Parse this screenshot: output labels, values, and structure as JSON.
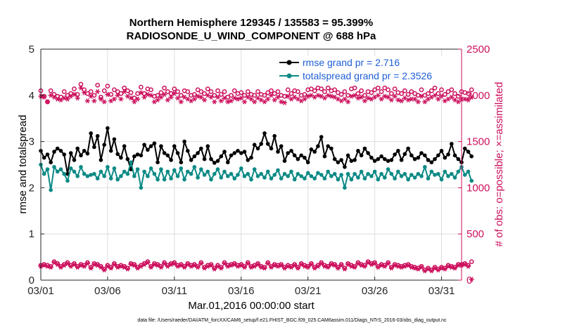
{
  "chart_data": {
    "type": "line",
    "title_lines": [
      "Northern Hemisphere 129345 / 135583 = 95.399%",
      "RADIOSONDE_U_WIND_COMPONENT @ 688 hPa"
    ],
    "xlabel": "Mar.01,2016 00:00:00 start",
    "ylabel_left": "rmse and totalspread",
    "ylabel_right": "# of obs: o=possible; ×=assimilated",
    "footnote": "data file: /Users/raeder/DAI/ATM_forcXX/CAM6_setup/f.e21.FHIST_BGC.f09_025.CAM6assim.011/Diags_NTrS_2016-03/obs_diag_output.nc",
    "xlim": [
      0,
      31.5
    ],
    "ylim_left": [
      0,
      5
    ],
    "ylim_right": [
      0,
      2500
    ],
    "x_ticks": [
      0,
      5,
      10,
      15,
      20,
      25,
      30
    ],
    "x_tick_labels": [
      "03/01",
      "03/06",
      "03/11",
      "03/16",
      "03/21",
      "03/26",
      "03/31"
    ],
    "y_left_ticks": [
      0,
      1,
      2,
      3,
      4,
      5
    ],
    "y_left_tick_labels": [
      "0",
      "1",
      "2",
      "3",
      "4",
      "5"
    ],
    "y_right_ticks": [
      0,
      500,
      1000,
      1500,
      2000,
      2500
    ],
    "y_right_tick_labels": [
      "0",
      "500",
      "1000",
      "1500",
      "2000",
      "2500"
    ],
    "x_step_days": 0.25,
    "colors": {
      "rmse": "#000000",
      "spread": "#0b8a85",
      "obs": "#cc0f5c",
      "legend_text": "#1f5fd6"
    },
    "series": [
      {
        "name": "rmse grand pr = 2.716",
        "axis": "left",
        "values": [
          2.8,
          2.65,
          2.72,
          2.55,
          2.78,
          2.85,
          2.8,
          2.72,
          2.3,
          2.75,
          2.6,
          2.85,
          2.7,
          2.8,
          2.74,
          3.18,
          2.88,
          3.12,
          2.6,
          2.93,
          3.29,
          2.8,
          3.05,
          2.73,
          2.65,
          2.9,
          2.62,
          2.4,
          2.68,
          2.72,
          2.7,
          2.93,
          2.82,
          2.9,
          2.96,
          2.55,
          2.9,
          2.75,
          2.7,
          2.6,
          2.9,
          2.75,
          2.55,
          3.0,
          2.8,
          2.6,
          2.68,
          2.75,
          2.85,
          2.62,
          2.9,
          2.62,
          2.54,
          2.58,
          2.68,
          2.78,
          2.55,
          2.7,
          2.75,
          2.8,
          2.75,
          2.78,
          2.6,
          2.65,
          2.93,
          2.85,
          2.95,
          3.18,
          2.95,
          2.85,
          3.12,
          2.78,
          2.9,
          2.58,
          2.75,
          2.8,
          2.7,
          2.62,
          2.7,
          2.65,
          2.55,
          2.83,
          2.78,
          2.9,
          3.1,
          2.68,
          2.9,
          2.85,
          2.62,
          2.55,
          2.6,
          2.45,
          2.7,
          2.58,
          2.6,
          2.8,
          2.7,
          2.85,
          2.75,
          2.65,
          2.58,
          2.62,
          2.68,
          2.62,
          2.58,
          2.6,
          2.72,
          2.8,
          2.6,
          2.73,
          2.85,
          2.7,
          2.62,
          2.65,
          2.75,
          2.7,
          2.6,
          2.55,
          2.62,
          2.7,
          2.8,
          2.65,
          2.72,
          2.95,
          2.7,
          2.62,
          2.55,
          2.85,
          2.78,
          2.68
        ],
        "style": "line-markers"
      },
      {
        "name": "totalspread grand pr = 2.3526",
        "axis": "left",
        "values": [
          2.5,
          2.3,
          2.4,
          1.95,
          2.45,
          2.35,
          2.4,
          2.3,
          2.15,
          2.42,
          2.35,
          2.25,
          2.45,
          2.3,
          2.25,
          2.28,
          2.3,
          2.2,
          2.35,
          2.25,
          2.45,
          2.2,
          2.42,
          2.18,
          2.25,
          2.35,
          2.3,
          2.55,
          2.25,
          2.4,
          2.0,
          2.35,
          2.25,
          2.42,
          2.3,
          2.18,
          2.4,
          2.18,
          2.35,
          2.2,
          2.38,
          2.25,
          2.42,
          2.18,
          2.35,
          2.3,
          2.45,
          2.22,
          2.4,
          2.28,
          2.35,
          2.18,
          2.3,
          2.4,
          2.22,
          2.35,
          2.25,
          2.3,
          2.2,
          2.28,
          2.42,
          2.25,
          2.3,
          2.18,
          2.4,
          2.25,
          2.3,
          2.22,
          2.35,
          2.2,
          2.28,
          2.38,
          2.2,
          2.3,
          2.25,
          2.35,
          2.18,
          2.3,
          2.25,
          2.2,
          2.32,
          2.25,
          2.2,
          2.32,
          2.28,
          2.2,
          2.35,
          2.25,
          2.3,
          2.18,
          2.28,
          2.0,
          2.3,
          2.18,
          2.3,
          2.22,
          2.35,
          2.2,
          2.3,
          2.25,
          2.35,
          2.18,
          2.3,
          2.22,
          2.4,
          2.3,
          2.2,
          2.35,
          2.25,
          2.3,
          2.18,
          2.28,
          2.22,
          2.3,
          2.25,
          2.45,
          2.2,
          2.35,
          2.28,
          2.3,
          2.18,
          2.35,
          2.25,
          2.3,
          2.22,
          2.35,
          2.45,
          2.28,
          2.35,
          2.15
        ],
        "style": "line-markers"
      },
      {
        "name": "possible (upper)",
        "axis": "right",
        "values": [
          2050,
          1990,
          1930,
          2050,
          2010,
          1990,
          1980,
          2040,
          2000,
          2020,
          2070,
          2010,
          2120,
          2060,
          2020,
          2040,
          2000,
          2110,
          1980,
          2050,
          2100,
          2010,
          2060,
          2040,
          2020,
          2080,
          2050,
          2030,
          1970,
          2020,
          2090,
          2020,
          2070,
          2060,
          1990,
          2000,
          2030,
          2080,
          2040,
          2020,
          2070,
          2040,
          2000,
          2050,
          2040,
          2000,
          2010,
          2060,
          2040,
          2020,
          2070,
          2040,
          2000,
          2050,
          2010,
          2040,
          1980,
          2000,
          2050,
          2020,
          2030,
          2000,
          2040,
          2010,
          2000,
          2040,
          2010,
          2000,
          2030,
          2050,
          2020,
          2040,
          2000,
          1990,
          2060,
          2020,
          2050,
          2040,
          2000,
          2010,
          2060,
          2070,
          2050,
          2080,
          2070,
          2040,
          2080,
          2050,
          2060,
          2030,
          2010,
          2040,
          2000,
          2070,
          2080,
          2020,
          2050,
          2000,
          2040,
          2030,
          2060,
          2080,
          2040,
          2080,
          2060,
          2020,
          2070,
          2030,
          2020,
          2050,
          2010,
          2040,
          2020,
          2000,
          2060,
          2000,
          2020,
          2050,
          2080,
          2020,
          2060,
          2010,
          2040,
          2060,
          2020,
          1990,
          2040,
          2030,
          2020,
          2060
        ],
        "style": "markers-circle"
      },
      {
        "name": "assimilated (upper)",
        "axis": "right",
        "values": [
          1990,
          1980,
          1930,
          2000,
          1980,
          1960,
          1950,
          1970,
          1960,
          1990,
          2010,
          1970,
          2080,
          2030,
          1940,
          1990,
          1940,
          2040,
          1960,
          1930,
          2010,
          1940,
          1960,
          2000,
          1960,
          2040,
          1990,
          1970,
          1930,
          1960,
          2030,
          1980,
          2010,
          2000,
          1930,
          1950,
          1980,
          2010,
          1950,
          1980,
          2020,
          1970,
          1930,
          1980,
          1960,
          1940,
          1960,
          1990,
          1980,
          1950,
          2000,
          1980,
          1930,
          1980,
          1940,
          1970,
          1930,
          1940,
          1970,
          1960,
          1970,
          1930,
          1980,
          1960,
          1930,
          1970,
          1950,
          1930,
          1960,
          2000,
          1950,
          1980,
          1930,
          1920,
          1990,
          1960,
          1980,
          1960,
          1940,
          1960,
          1990,
          2000,
          1980,
          2000,
          1990,
          1970,
          2000,
          1990,
          1980,
          1960,
          1940,
          1960,
          1930,
          1990,
          2000,
          1970,
          1980,
          1940,
          1970,
          1960,
          1980,
          2000,
          1960,
          1990,
          1980,
          1950,
          1990,
          1950,
          1940,
          1970,
          1950,
          1960,
          1960,
          1930,
          1990,
          1930,
          1960,
          1980,
          2000,
          1960,
          1990,
          1940,
          1960,
          1980,
          1950,
          1930,
          1960,
          1960,
          1950,
          1980
        ],
        "style": "markers-star"
      },
      {
        "name": "possible (lower)",
        "axis": "right",
        "values": [
          160,
          170,
          160,
          150,
          200,
          180,
          150,
          170,
          190,
          160,
          180,
          150,
          170,
          160,
          190,
          140,
          180,
          170,
          150,
          120,
          160,
          140,
          180,
          150,
          160,
          150,
          130,
          180,
          170,
          140,
          160,
          180,
          200,
          150,
          180,
          170,
          150,
          190,
          160,
          180,
          190,
          160,
          170,
          150,
          180,
          160,
          170,
          150,
          190,
          140,
          160,
          170,
          130,
          160,
          140,
          190,
          160,
          170,
          180,
          160,
          170,
          150,
          190,
          150,
          160,
          180,
          150,
          140,
          190,
          150,
          170,
          160,
          170,
          140,
          160,
          150,
          170,
          140,
          180,
          160,
          150,
          180,
          140,
          160,
          190,
          160,
          150,
          180,
          170,
          140,
          170,
          130,
          180,
          160,
          150,
          190,
          170,
          160,
          200,
          180,
          190,
          150,
          170,
          160,
          190,
          140,
          170,
          160,
          150,
          160,
          170,
          150,
          140,
          130,
          150,
          110,
          130,
          110,
          140,
          120,
          140,
          130,
          160,
          150,
          140,
          170,
          170,
          180,
          160,
          200
        ],
        "style": "markers-circle"
      },
      {
        "name": "assimilated (lower)",
        "axis": "right",
        "values": [
          150,
          160,
          150,
          140,
          190,
          170,
          140,
          160,
          180,
          150,
          170,
          140,
          160,
          150,
          180,
          130,
          170,
          160,
          140,
          110,
          150,
          130,
          170,
          140,
          150,
          140,
          120,
          170,
          160,
          130,
          150,
          170,
          190,
          140,
          170,
          160,
          140,
          180,
          150,
          170,
          180,
          150,
          160,
          140,
          170,
          150,
          160,
          140,
          180,
          130,
          150,
          160,
          120,
          150,
          130,
          180,
          150,
          160,
          170,
          150,
          160,
          140,
          180,
          140,
          150,
          170,
          140,
          130,
          180,
          140,
          160,
          150,
          160,
          130,
          150,
          140,
          160,
          130,
          170,
          150,
          140,
          170,
          130,
          150,
          180,
          150,
          140,
          170,
          160,
          130,
          160,
          120,
          170,
          150,
          140,
          180,
          160,
          150,
          190,
          170,
          180,
          140,
          160,
          150,
          180,
          130,
          160,
          150,
          140,
          150,
          160,
          140,
          130,
          120,
          140,
          100,
          120,
          100,
          130,
          110,
          130,
          120,
          150,
          140,
          130,
          160,
          160,
          170,
          150,
          10
        ],
        "style": "markers-star"
      }
    ]
  }
}
